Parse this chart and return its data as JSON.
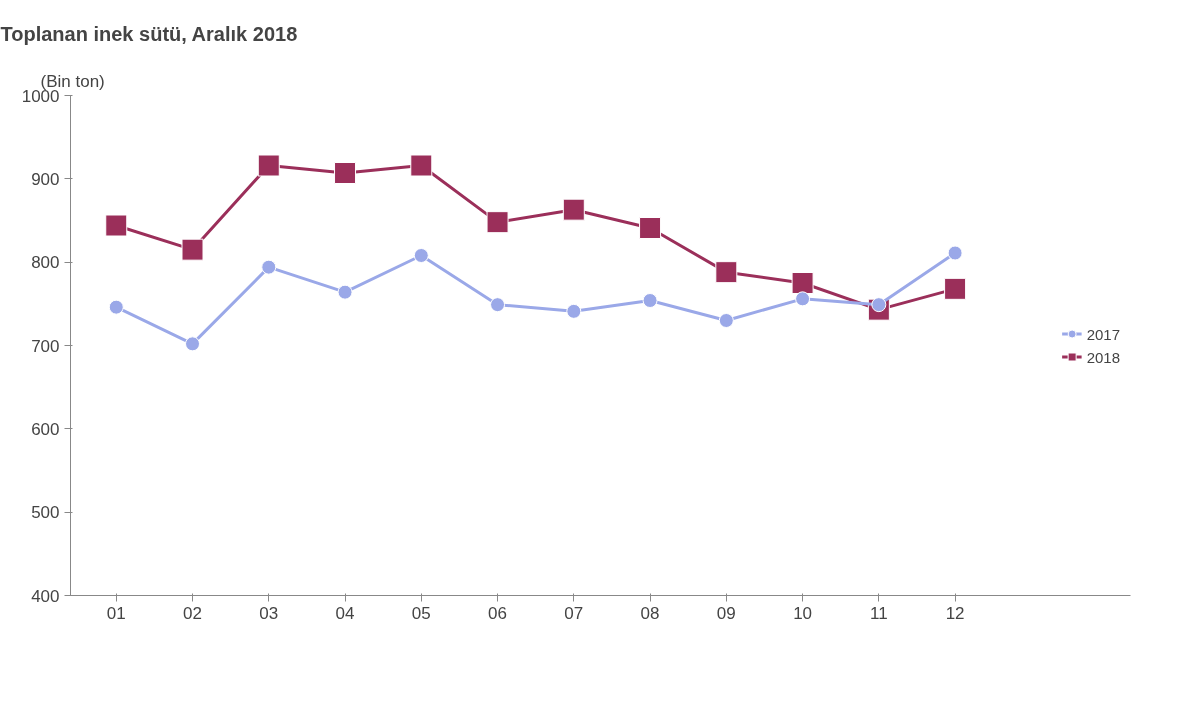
{
  "chart_data": {
    "type": "line",
    "title": "Toplanan inek sütü, Aralık 2018",
    "ylabel": "(Bin ton)",
    "categories": [
      "01",
      "02",
      "03",
      "04",
      "05",
      "06",
      "07",
      "08",
      "09",
      "10",
      "11",
      "12"
    ],
    "series": [
      {
        "name": "2017",
        "color": "#9aa8e8",
        "marker": "circle",
        "values": [
          746,
          702,
          794,
          764,
          808,
          749,
          741,
          754,
          730,
          756,
          749,
          811
        ]
      },
      {
        "name": "2018",
        "color": "#9b2f5a",
        "marker": "square",
        "values": [
          844,
          815,
          916,
          907,
          916,
          848,
          863,
          841,
          788,
          775,
          743,
          768
        ]
      }
    ],
    "ylim": [
      400,
      1000
    ],
    "yticks": [
      400,
      500,
      600,
      700,
      800,
      900,
      1000
    ],
    "grid": false,
    "legend": "right"
  }
}
